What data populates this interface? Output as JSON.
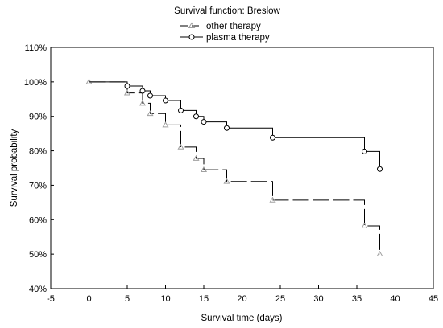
{
  "chart_data": {
    "type": "line",
    "title": "Survival function: Breslow",
    "xlabel": "Survival time (days)",
    "ylabel": "Survival probability",
    "xlim": [
      -5,
      45
    ],
    "ylim": [
      40,
      110
    ],
    "x_ticks": [
      "-5",
      "0",
      "5",
      "10",
      "15",
      "20",
      "25",
      "30",
      "35",
      "40",
      "45"
    ],
    "y_ticks": [
      "40%",
      "50%",
      "60%",
      "70%",
      "80%",
      "90%",
      "100%",
      "110%"
    ],
    "grid": false,
    "legend_position": "top-center",
    "series": [
      {
        "name": "other therapy",
        "step": true,
        "line_style": "dashed",
        "marker": "triangle",
        "color": "#000000",
        "marker_color": "#a0a0a0",
        "x": [
          0,
          5,
          7,
          8,
          10,
          12,
          14,
          15,
          18,
          24,
          36,
          38
        ],
        "y": [
          100,
          96.8,
          93.8,
          90.8,
          87.5,
          81.1,
          77.8,
          74.5,
          71.1,
          65.7,
          58.2,
          50.0
        ]
      },
      {
        "name": "plasma therapy",
        "step": true,
        "line_style": "solid",
        "marker": "circle",
        "color": "#000000",
        "marker_color": "#000000",
        "x": [
          5,
          7,
          8,
          10,
          12,
          14,
          15,
          18,
          24,
          36,
          38
        ],
        "y": [
          98.8,
          97.4,
          96.0,
          94.6,
          91.7,
          90.0,
          88.4,
          86.6,
          83.8,
          79.8,
          74.7
        ],
        "start": [
          0,
          100
        ]
      }
    ]
  }
}
